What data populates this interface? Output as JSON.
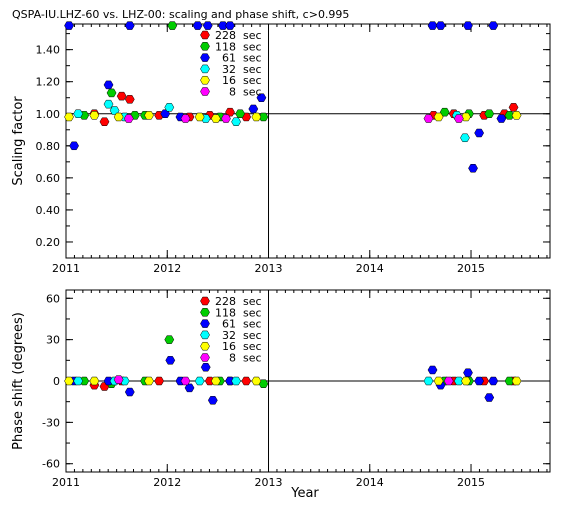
{
  "chart_data": [
    {
      "type": "scatter",
      "title": "QSPA-IU.LHZ-60 vs. LHZ-00: scaling and phase shift, c>0.995",
      "xlabel": "",
      "ylabel": "Scaling factor",
      "xlim": [
        2011.0,
        2015.78
      ],
      "ylim": [
        0.1,
        1.56
      ],
      "yticks": [
        0.2,
        0.4,
        0.6,
        0.8,
        1.0,
        1.2,
        1.4
      ],
      "ytick_labels": [
        "0.20",
        "0.40",
        "0.60",
        "0.80",
        "1.00",
        "1.20",
        "1.40"
      ],
      "xticks": [
        2011,
        2012,
        2013,
        2014,
        2015
      ],
      "xtick_labels": [
        "2011",
        "2012",
        "2013",
        "2014",
        "2015"
      ],
      "vlines": [
        2011.0,
        2013.0
      ],
      "hline": 1.0,
      "grid": false,
      "legend_position": "top-center",
      "series": [
        {
          "name": "228 sec",
          "color": "#ff0000",
          "points": [
            [
              2011.28,
              1.0
            ],
            [
              2011.38,
              0.95
            ],
            [
              2011.55,
              1.11
            ],
            [
              2011.63,
              1.09
            ],
            [
              2011.92,
              0.99
            ],
            [
              2012.22,
              0.98
            ],
            [
              2012.42,
              0.99
            ],
            [
              2012.62,
              1.01
            ],
            [
              2012.78,
              0.98
            ],
            [
              2014.63,
              0.99
            ],
            [
              2014.83,
              1.0
            ],
            [
              2015.13,
              0.99
            ],
            [
              2015.33,
              1.0
            ],
            [
              2015.42,
              1.04
            ]
          ]
        },
        {
          "name": "118 sec",
          "color": "#00cc00",
          "points": [
            [
              2011.18,
              0.99
            ],
            [
              2011.45,
              1.13
            ],
            [
              2011.68,
              0.99
            ],
            [
              2011.78,
              0.99
            ],
            [
              2012.05,
              1.55
            ],
            [
              2012.52,
              0.98
            ],
            [
              2012.72,
              1.0
            ],
            [
              2012.95,
              0.98
            ],
            [
              2014.74,
              1.01
            ],
            [
              2014.98,
              1.0
            ],
            [
              2015.18,
              1.0
            ],
            [
              2015.38,
              0.99
            ]
          ]
        },
        {
          "name": "61 sec",
          "color": "#0000ff",
          "points": [
            [
              2011.03,
              1.55
            ],
            [
              2011.08,
              0.8
            ],
            [
              2011.42,
              1.18
            ],
            [
              2011.63,
              1.55
            ],
            [
              2011.98,
              1.0
            ],
            [
              2012.13,
              0.98
            ],
            [
              2012.3,
              1.55
            ],
            [
              2012.4,
              1.55
            ],
            [
              2012.55,
              1.55
            ],
            [
              2012.62,
              1.55
            ],
            [
              2012.85,
              1.03
            ],
            [
              2012.93,
              1.1
            ],
            [
              2014.62,
              1.55
            ],
            [
              2014.7,
              1.55
            ],
            [
              2014.97,
              1.55
            ],
            [
              2015.02,
              0.66
            ],
            [
              2015.08,
              0.88
            ],
            [
              2015.22,
              1.55
            ],
            [
              2015.3,
              0.97
            ]
          ]
        },
        {
          "name": "32 sec",
          "color": "#00ffff",
          "points": [
            [
              2011.12,
              1.0
            ],
            [
              2011.42,
              1.06
            ],
            [
              2011.48,
              1.02
            ],
            [
              2011.58,
              0.98
            ],
            [
              2012.02,
              1.04
            ],
            [
              2012.38,
              0.97
            ],
            [
              2012.68,
              0.95
            ],
            [
              2014.94,
              0.85
            ],
            [
              2014.86,
              0.99
            ]
          ]
        },
        {
          "name": "16 sec",
          "color": "#ffff00",
          "points": [
            [
              2011.03,
              0.98
            ],
            [
              2011.28,
              0.99
            ],
            [
              2011.52,
              0.98
            ],
            [
              2011.82,
              0.99
            ],
            [
              2012.32,
              0.98
            ],
            [
              2012.48,
              0.97
            ],
            [
              2012.88,
              0.98
            ],
            [
              2014.68,
              0.98
            ],
            [
              2014.95,
              0.98
            ],
            [
              2015.45,
              0.99
            ]
          ]
        },
        {
          "name": "8 sec",
          "color": "#ff00ff",
          "points": [
            [
              2011.62,
              0.97
            ],
            [
              2012.18,
              0.97
            ],
            [
              2012.58,
              0.97
            ],
            [
              2014.58,
              0.97
            ],
            [
              2014.88,
              0.97
            ]
          ]
        }
      ]
    },
    {
      "type": "scatter",
      "title": "",
      "xlabel": "Year",
      "ylabel": "Phase shift (degrees)",
      "xlim": [
        2011.0,
        2015.78
      ],
      "ylim": [
        -66,
        66
      ],
      "yticks": [
        -60,
        -30,
        0,
        30,
        60
      ],
      "ytick_labels": [
        "-60",
        "-30",
        "0",
        "30",
        "60"
      ],
      "xticks": [
        2011,
        2012,
        2013,
        2014,
        2015
      ],
      "xtick_labels": [
        "2011",
        "2012",
        "2013",
        "2014",
        "2015"
      ],
      "vlines": [
        2011.0,
        2013.0
      ],
      "hline": 0,
      "grid": false,
      "legend_position": "top-center",
      "series": [
        {
          "name": "228 sec",
          "color": "#ff0000",
          "points": [
            [
              2011.28,
              -3
            ],
            [
              2011.38,
              -4
            ],
            [
              2011.55,
              0
            ],
            [
              2011.92,
              0
            ],
            [
              2012.42,
              0
            ],
            [
              2012.62,
              0
            ],
            [
              2012.78,
              0
            ],
            [
              2014.83,
              0
            ],
            [
              2015.13,
              0
            ],
            [
              2015.42,
              0
            ]
          ]
        },
        {
          "name": "118 sec",
          "color": "#00cc00",
          "points": [
            [
              2011.18,
              0
            ],
            [
              2011.45,
              -2
            ],
            [
              2011.78,
              0
            ],
            [
              2012.02,
              30
            ],
            [
              2012.52,
              0
            ],
            [
              2012.95,
              -2
            ],
            [
              2014.74,
              0
            ],
            [
              2014.98,
              0
            ],
            [
              2015.38,
              0
            ]
          ]
        },
        {
          "name": "61 sec",
          "color": "#0000ff",
          "points": [
            [
              2011.08,
              0
            ],
            [
              2011.42,
              0
            ],
            [
              2011.63,
              -8
            ],
            [
              2012.03,
              15
            ],
            [
              2012.13,
              0
            ],
            [
              2012.22,
              -5
            ],
            [
              2012.38,
              10
            ],
            [
              2012.45,
              -14
            ],
            [
              2012.62,
              0
            ],
            [
              2014.62,
              8
            ],
            [
              2014.7,
              -3
            ],
            [
              2014.97,
              6
            ],
            [
              2015.08,
              0
            ],
            [
              2015.18,
              -12
            ],
            [
              2015.22,
              0
            ]
          ]
        },
        {
          "name": "32 sec",
          "color": "#00ffff",
          "points": [
            [
              2011.12,
              0
            ],
            [
              2011.48,
              0
            ],
            [
              2011.58,
              0
            ],
            [
              2012.32,
              0
            ],
            [
              2012.68,
              0
            ],
            [
              2014.58,
              0
            ],
            [
              2014.88,
              0
            ]
          ]
        },
        {
          "name": "16 sec",
          "color": "#ffff00",
          "points": [
            [
              2011.03,
              0
            ],
            [
              2011.28,
              0
            ],
            [
              2011.82,
              0
            ],
            [
              2012.48,
              0
            ],
            [
              2012.88,
              0
            ],
            [
              2014.68,
              0
            ],
            [
              2014.95,
              0
            ],
            [
              2015.45,
              0
            ]
          ]
        },
        {
          "name": "8 sec",
          "color": "#ff00ff",
          "points": [
            [
              2011.52,
              1
            ],
            [
              2012.18,
              0
            ],
            [
              2014.78,
              0
            ]
          ]
        }
      ]
    }
  ]
}
